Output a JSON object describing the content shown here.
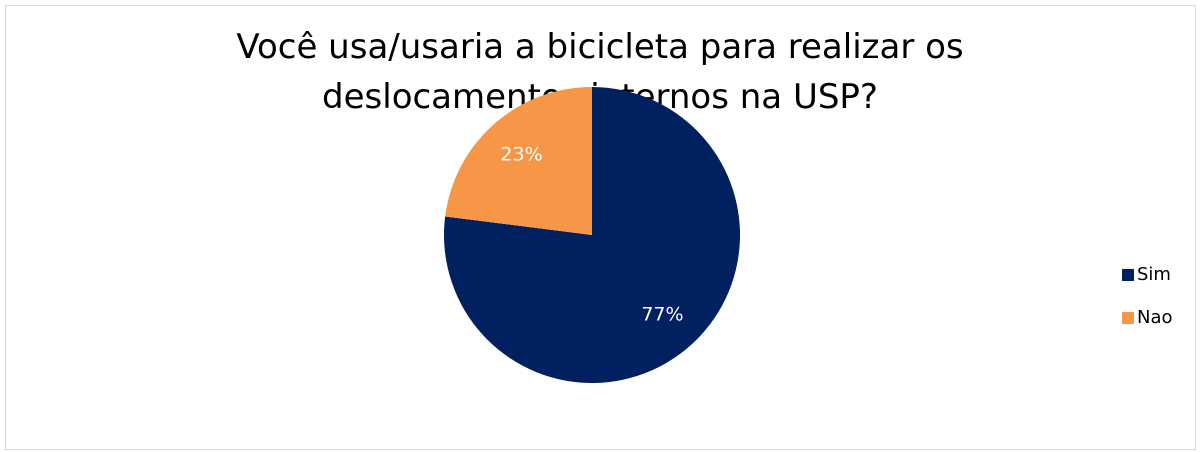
{
  "chart_data": {
    "type": "pie",
    "title": "Você usa/usaria a bicicleta para realizar os deslocamentos internos na USP?",
    "categories": [
      "Sim",
      "Nao"
    ],
    "values": [
      77,
      23
    ],
    "value_labels": [
      "77%",
      "23%"
    ],
    "colors": [
      "#002060",
      "#f79646"
    ],
    "legend": "right"
  }
}
